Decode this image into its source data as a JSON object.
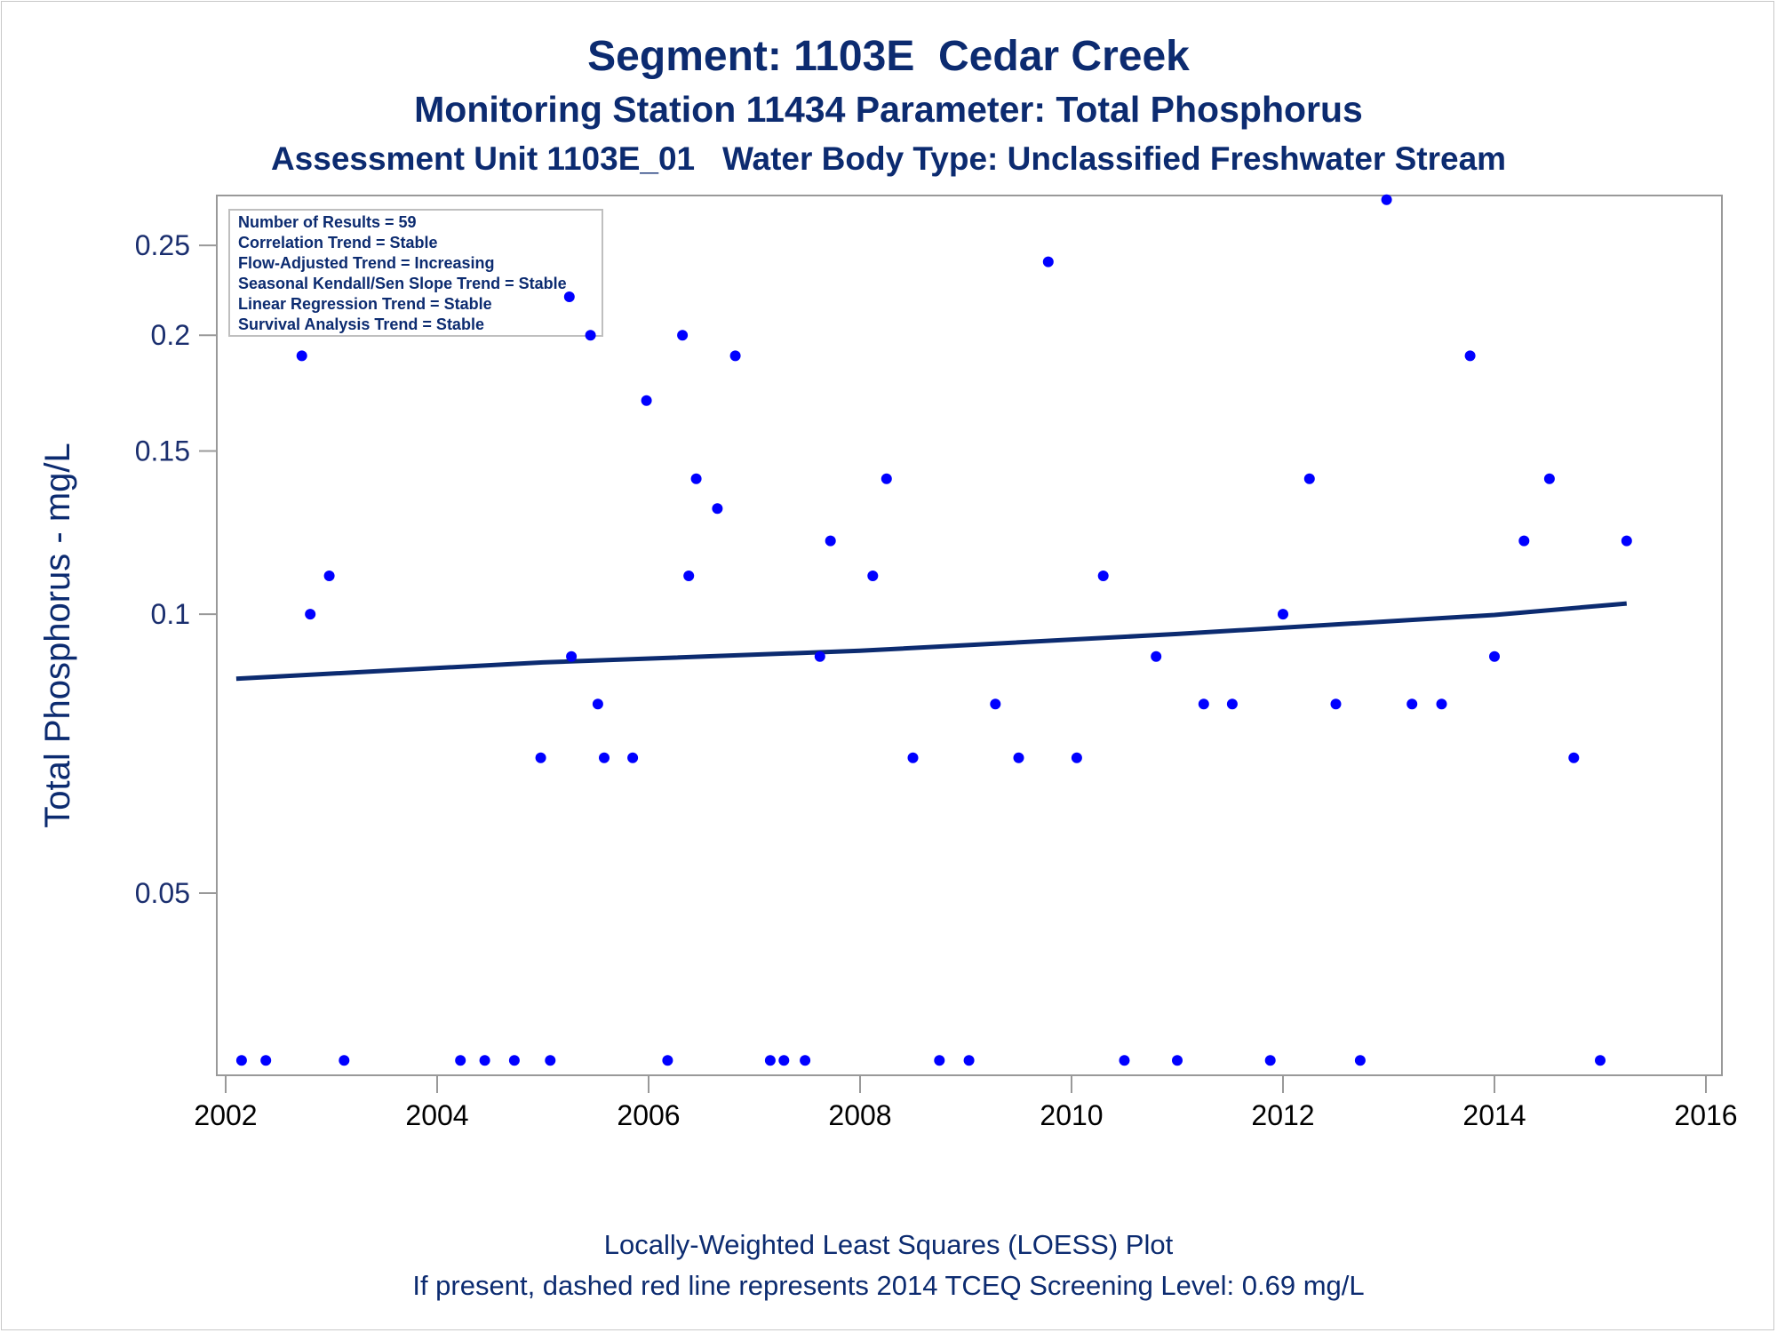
{
  "titles": {
    "line1": "Segment: 1103E  Cedar Creek",
    "line2": "Monitoring Station 11434 Parameter: Total Phosphorus",
    "line3": "Assessment Unit 1103E_01   Water Body Type: Unclassified Freshwater Stream"
  },
  "footnotes": {
    "line1": "Locally-Weighted Least Squares (LOESS) Plot",
    "line2": "If present, dashed red line represents 2014 TCEQ Screening Level: 0.69 mg/L"
  },
  "inset": [
    "Number of Results = 59",
    "Correlation Trend = Stable",
    "Flow-Adjusted Trend = Increasing",
    "Seasonal Kendall/Sen Slope Trend = Stable",
    "Linear Regression Trend = Stable",
    "Survival Analysis Trend = Stable"
  ],
  "colors": {
    "points": "#0000ff",
    "loess": "#0c2b70",
    "text": "#0c2b70",
    "axis": "#999999"
  },
  "chart_data": {
    "type": "scatter",
    "ylabel": "Total Phosphorus - mg/L",
    "xlabel": "",
    "y_scale": "log",
    "xlim": [
      2002,
      2016
    ],
    "ylim": [
      0.0318,
      0.283
    ],
    "x_ticks": [
      "2002",
      "2004",
      "2006",
      "2008",
      "2010",
      "2012",
      "2014",
      "2016"
    ],
    "y_ticks": [
      {
        "value": 0.05,
        "label": "0.05"
      },
      {
        "value": 0.1,
        "label": "0.1"
      },
      {
        "value": 0.15,
        "label": "0.15"
      },
      {
        "value": 0.2,
        "label": "0.2"
      },
      {
        "value": 0.25,
        "label": "0.25"
      }
    ],
    "grid": false,
    "legend": "none",
    "series": [
      {
        "values": [
          [
            2002.15,
            0.033
          ],
          [
            2002.38,
            0.033
          ],
          [
            2002.72,
            0.19
          ],
          [
            2002.8,
            0.1
          ],
          [
            2002.98,
            0.11
          ],
          [
            2003.12,
            0.033
          ],
          [
            2004.22,
            0.033
          ],
          [
            2004.45,
            0.033
          ],
          [
            2004.73,
            0.033
          ],
          [
            2004.98,
            0.07
          ],
          [
            2005.07,
            0.033
          ],
          [
            2005.25,
            0.22
          ],
          [
            2005.27,
            0.09
          ],
          [
            2005.45,
            0.2
          ],
          [
            2005.52,
            0.08
          ],
          [
            2005.58,
            0.07
          ],
          [
            2005.85,
            0.07
          ],
          [
            2005.98,
            0.17
          ],
          [
            2006.18,
            0.033
          ],
          [
            2006.32,
            0.2
          ],
          [
            2006.38,
            0.11
          ],
          [
            2006.45,
            0.14
          ],
          [
            2006.65,
            0.13
          ],
          [
            2006.82,
            0.19
          ],
          [
            2007.15,
            0.033
          ],
          [
            2007.28,
            0.033
          ],
          [
            2007.48,
            0.033
          ],
          [
            2007.62,
            0.09
          ],
          [
            2007.72,
            0.12
          ],
          [
            2008.12,
            0.11
          ],
          [
            2008.25,
            0.14
          ],
          [
            2008.5,
            0.07
          ],
          [
            2008.75,
            0.033
          ],
          [
            2009.03,
            0.033
          ],
          [
            2009.28,
            0.08
          ],
          [
            2009.5,
            0.07
          ],
          [
            2009.78,
            0.24
          ],
          [
            2010.05,
            0.07
          ],
          [
            2010.3,
            0.11
          ],
          [
            2010.5,
            0.033
          ],
          [
            2010.8,
            0.09
          ],
          [
            2011.0,
            0.033
          ],
          [
            2011.25,
            0.08
          ],
          [
            2011.52,
            0.08
          ],
          [
            2011.88,
            0.033
          ],
          [
            2012.0,
            0.1
          ],
          [
            2012.25,
            0.14
          ],
          [
            2012.5,
            0.08
          ],
          [
            2012.73,
            0.033
          ],
          [
            2012.98,
            0.28
          ],
          [
            2013.22,
            0.08
          ],
          [
            2013.5,
            0.08
          ],
          [
            2013.77,
            0.19
          ],
          [
            2014.0,
            0.09
          ],
          [
            2014.28,
            0.12
          ],
          [
            2014.52,
            0.14
          ],
          [
            2014.75,
            0.07
          ],
          [
            2015.0,
            0.033
          ],
          [
            2015.25,
            0.12
          ]
        ]
      }
    ],
    "loess": [
      [
        2002.1,
        0.0852
      ],
      [
        2005.0,
        0.0887
      ],
      [
        2008.0,
        0.0913
      ],
      [
        2011.0,
        0.0952
      ],
      [
        2014.0,
        0.0998
      ],
      [
        2015.25,
        0.1027
      ]
    ]
  }
}
